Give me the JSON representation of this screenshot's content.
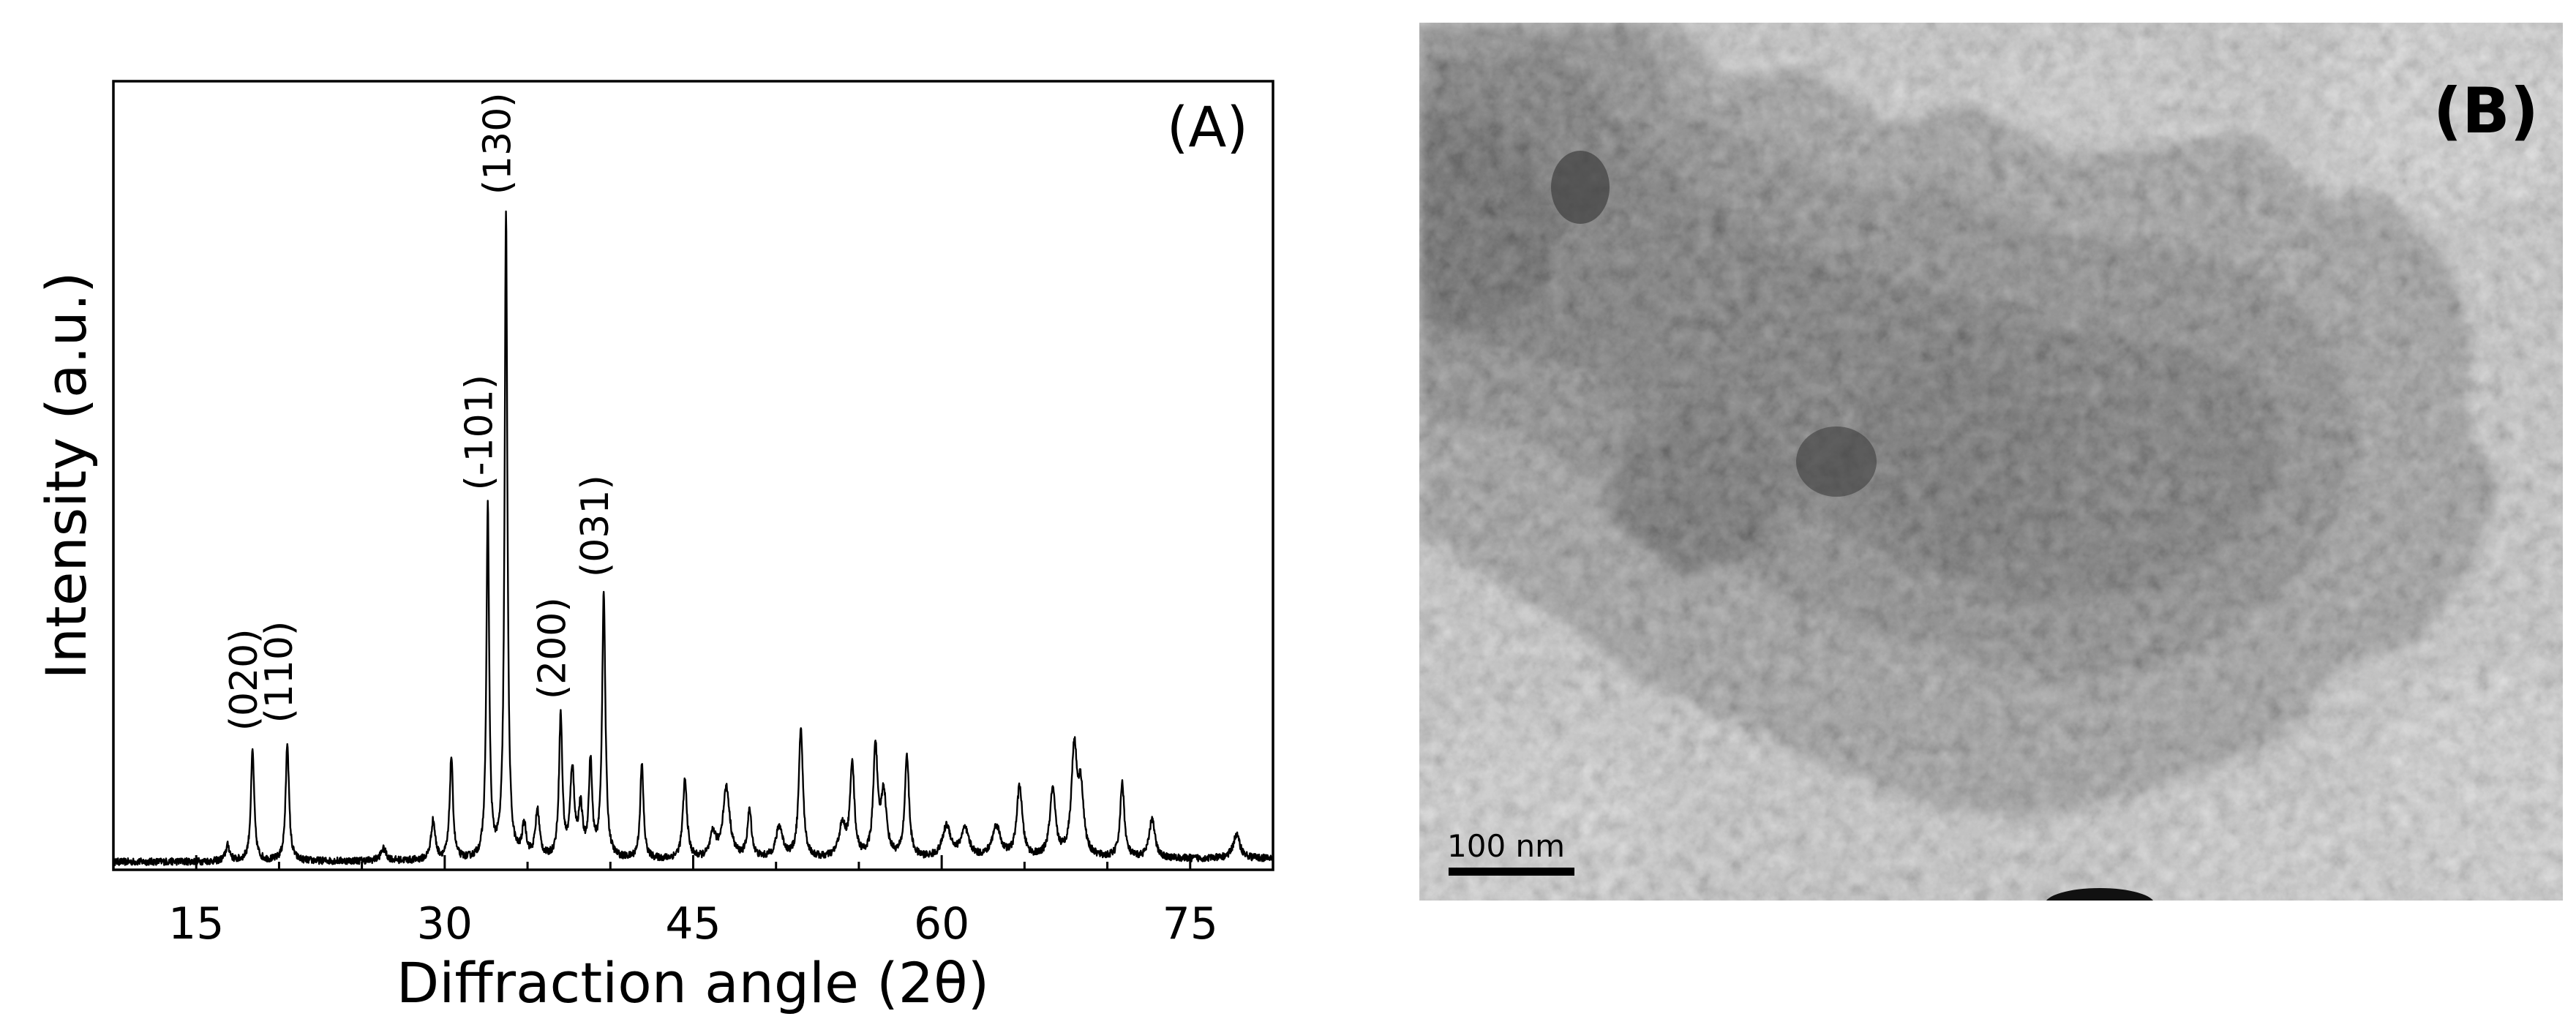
{
  "panel_a_label": "(A)",
  "panel_b_label": "(B)",
  "scale_bar_label": "100 nm",
  "colors": {
    "line": "#000000",
    "background": "#ffffff"
  },
  "chart_data": {
    "type": "line",
    "xlabel": "Diffraction angle (2θ)",
    "ylabel": "Intensity (a.u.)",
    "xlim": [
      10,
      80
    ],
    "ylim": [
      0,
      100
    ],
    "xticks": [
      15,
      30,
      45,
      60,
      75
    ],
    "y_tick_labels": false,
    "grid": false,
    "peaks": [
      {
        "x": 16.9,
        "y": 2,
        "w": 0.15
      },
      {
        "x": 18.4,
        "y": 14,
        "w": 0.12
      },
      {
        "x": 20.5,
        "y": 15,
        "w": 0.12
      },
      {
        "x": 26.3,
        "y": 1.5,
        "w": 0.2
      },
      {
        "x": 29.3,
        "y": 5,
        "w": 0.15
      },
      {
        "x": 30.4,
        "y": 13,
        "w": 0.12
      },
      {
        "x": 32.6,
        "y": 44.5,
        "w": 0.1
      },
      {
        "x": 33.7,
        "y": 82,
        "w": 0.1
      },
      {
        "x": 34.8,
        "y": 4,
        "w": 0.15
      },
      {
        "x": 35.6,
        "y": 6,
        "w": 0.15
      },
      {
        "x": 37.0,
        "y": 18,
        "w": 0.12
      },
      {
        "x": 37.7,
        "y": 11,
        "w": 0.15
      },
      {
        "x": 38.2,
        "y": 6,
        "w": 0.15
      },
      {
        "x": 38.8,
        "y": 12,
        "w": 0.12
      },
      {
        "x": 39.6,
        "y": 33.5,
        "w": 0.12
      },
      {
        "x": 41.9,
        "y": 12,
        "w": 0.12
      },
      {
        "x": 44.5,
        "y": 10,
        "w": 0.15
      },
      {
        "x": 46.2,
        "y": 3,
        "w": 0.2
      },
      {
        "x": 47.0,
        "y": 9,
        "w": 0.25
      },
      {
        "x": 48.4,
        "y": 6,
        "w": 0.15
      },
      {
        "x": 50.2,
        "y": 4,
        "w": 0.25
      },
      {
        "x": 51.5,
        "y": 16.5,
        "w": 0.15
      },
      {
        "x": 54.0,
        "y": 4,
        "w": 0.25
      },
      {
        "x": 54.6,
        "y": 12,
        "w": 0.15
      },
      {
        "x": 56.0,
        "y": 14,
        "w": 0.15
      },
      {
        "x": 56.5,
        "y": 8,
        "w": 0.2
      },
      {
        "x": 57.9,
        "y": 13,
        "w": 0.15
      },
      {
        "x": 60.3,
        "y": 4,
        "w": 0.3
      },
      {
        "x": 61.4,
        "y": 3.5,
        "w": 0.3
      },
      {
        "x": 63.3,
        "y": 4,
        "w": 0.3
      },
      {
        "x": 64.7,
        "y": 9,
        "w": 0.2
      },
      {
        "x": 66.7,
        "y": 8.5,
        "w": 0.2
      },
      {
        "x": 68.0,
        "y": 13.5,
        "w": 0.2
      },
      {
        "x": 68.4,
        "y": 8,
        "w": 0.2
      },
      {
        "x": 70.9,
        "y": 9.5,
        "w": 0.15
      },
      {
        "x": 72.7,
        "y": 5,
        "w": 0.2
      },
      {
        "x": 77.8,
        "y": 3,
        "w": 0.25
      }
    ],
    "annotations": [
      {
        "text": "(020)",
        "x": 18.4
      },
      {
        "text": "(110)",
        "x": 20.5
      },
      {
        "text": "(-101)",
        "x": 32.6
      },
      {
        "text": "(130)",
        "x": 33.7
      },
      {
        "text": "(200)",
        "x": 37.0
      },
      {
        "text": "(031)",
        "x": 39.6
      }
    ]
  }
}
